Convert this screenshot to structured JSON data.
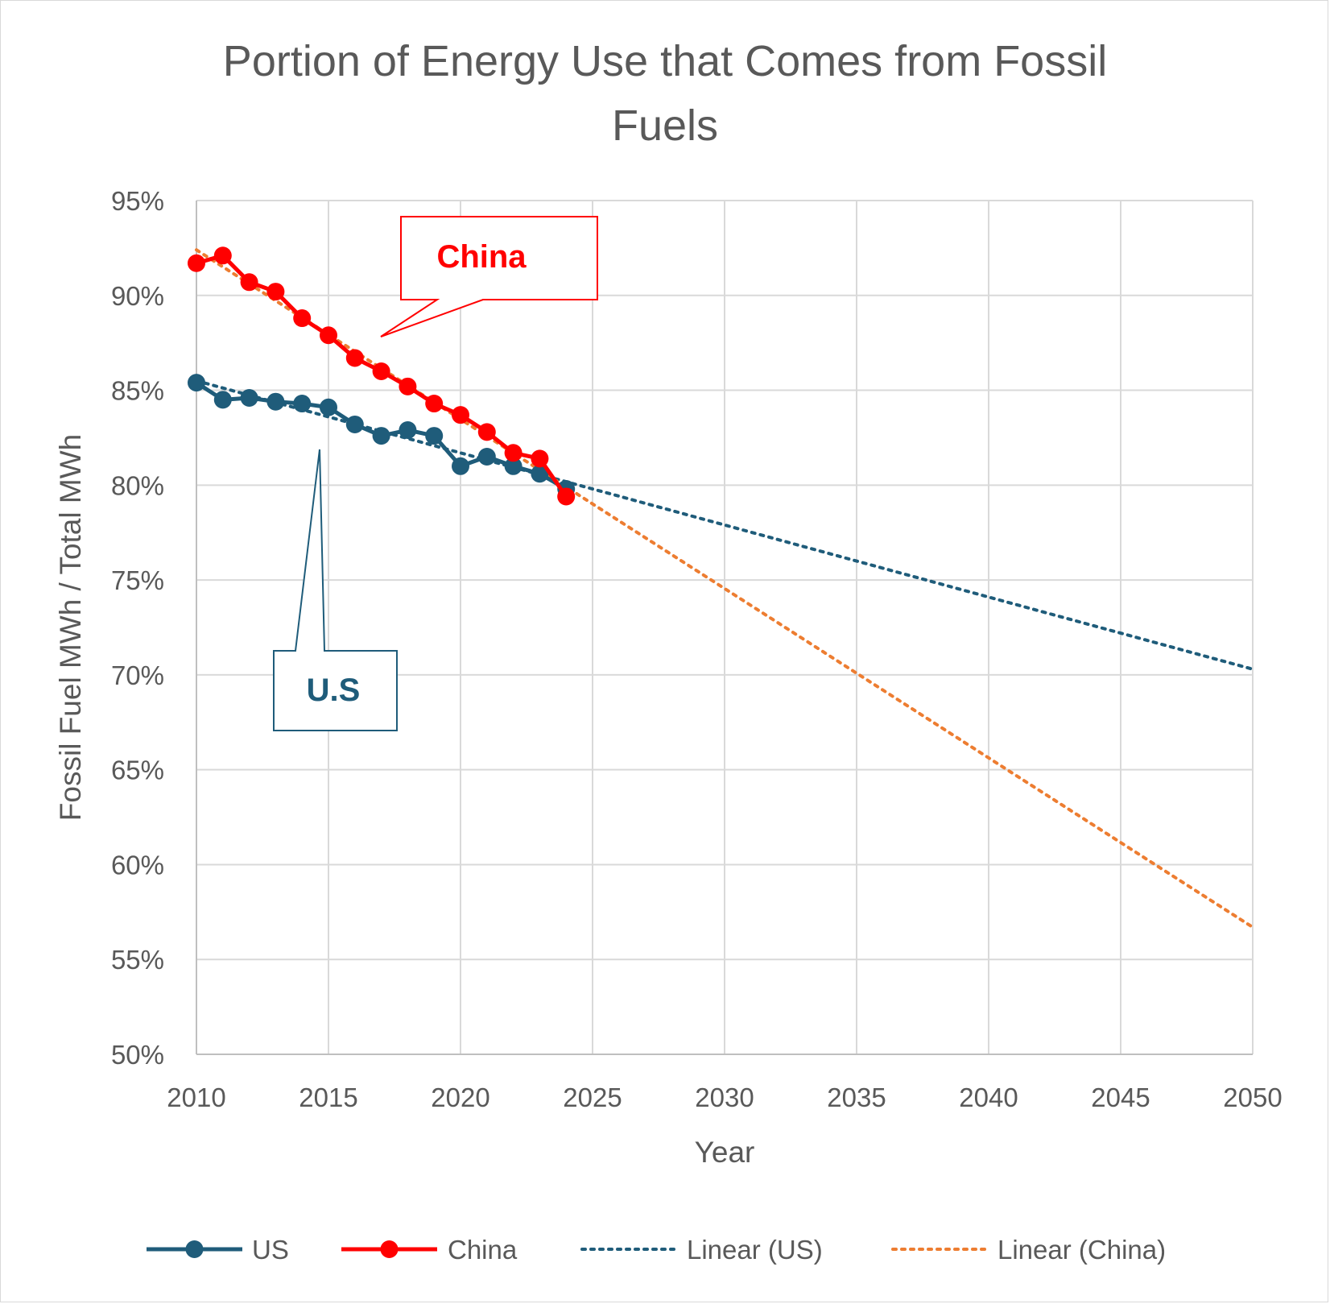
{
  "chart_data": {
    "type": "line",
    "title_lines": [
      "Portion of Energy Use that Comes from Fossil",
      "Fuels"
    ],
    "xlabel": "Year",
    "ylabel": "Fossil Fuel MWh / Total MWh",
    "xlim": [
      2010,
      2050
    ],
    "ylim": [
      50,
      95
    ],
    "x_ticks": [
      "2010",
      "2015",
      "2020",
      "2025",
      "2030",
      "2035",
      "2040",
      "2045",
      "2050"
    ],
    "y_ticks": [
      "50%",
      "55%",
      "60%",
      "65%",
      "70%",
      "75%",
      "80%",
      "85%",
      "90%",
      "95%"
    ],
    "grid": true,
    "legend_position": "bottom",
    "colors": {
      "us": "#1f5c7a",
      "china": "#ff0000",
      "linear_china": "#ed7d31",
      "grid": "#d9d9d9",
      "axis": "#bfbfbf",
      "text": "#595959"
    },
    "series": [
      {
        "name": "US",
        "x": [
          2010,
          2011,
          2012,
          2013,
          2014,
          2015,
          2016,
          2017,
          2018,
          2019,
          2020,
          2021,
          2022,
          2023,
          2024
        ],
        "values": [
          85.4,
          84.5,
          84.6,
          84.4,
          84.3,
          84.1,
          83.2,
          82.6,
          82.9,
          82.6,
          81.0,
          81.5,
          81.0,
          80.6,
          79.8
        ]
      },
      {
        "name": "China",
        "x": [
          2010,
          2011,
          2012,
          2013,
          2014,
          2015,
          2016,
          2017,
          2018,
          2019,
          2020,
          2021,
          2022,
          2023,
          2024
        ],
        "values": [
          91.7,
          92.1,
          90.7,
          90.2,
          88.8,
          87.9,
          86.7,
          86.0,
          85.2,
          84.3,
          83.7,
          82.8,
          81.7,
          81.4,
          79.4
        ]
      }
    ],
    "trendlines": [
      {
        "name": "Linear (US)",
        "x": [
          2010,
          2050
        ],
        "values": [
          85.5,
          70.3
        ]
      },
      {
        "name": "Linear (China)",
        "x": [
          2010,
          2050
        ],
        "values": [
          92.4,
          56.7
        ]
      }
    ],
    "legend": [
      "US",
      "China",
      "Linear (US)",
      "Linear (China)"
    ],
    "annotations": [
      {
        "text": "China",
        "series": "China"
      },
      {
        "text": "U.S",
        "series": "US"
      }
    ]
  }
}
